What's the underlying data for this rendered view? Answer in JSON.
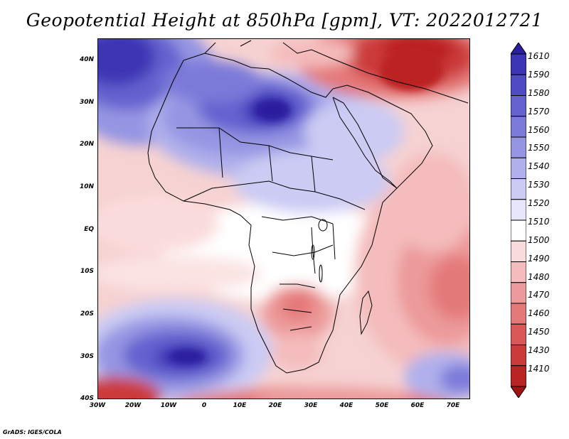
{
  "title": "Geopotential Height at 850hPa [gpm], VT: 2022012721",
  "credit": "GrADS: IGES/COLA",
  "map": {
    "projection": "latlon",
    "lon_range": [
      -30,
      75
    ],
    "lat_range": [
      -40,
      45
    ],
    "lat_labels": [
      "40N",
      "30N",
      "20N",
      "10N",
      "EQ",
      "10S",
      "20S",
      "30S",
      "40S"
    ],
    "lon_labels": [
      "30W",
      "20W",
      "10W",
      "0",
      "10E",
      "20E",
      "30E",
      "40E",
      "50E",
      "60E",
      "70E"
    ]
  },
  "colorbar": {
    "levels": [
      "1610",
      "1590",
      "1580",
      "1570",
      "1560",
      "1550",
      "1540",
      "1530",
      "1520",
      "1510",
      "1500",
      "1490",
      "1480",
      "1470",
      "1460",
      "1450",
      "1430",
      "1410"
    ],
    "colors": [
      "#2a1f9e",
      "#3c36b4",
      "#4f4bc4",
      "#6462cf",
      "#7b7ad9",
      "#9595e3",
      "#b0b0ec",
      "#cbcbf4",
      "#e6e6fa",
      "#ffffff",
      "#fbdcdc",
      "#f4bcbc",
      "#ec9a9a",
      "#e47979",
      "#d95858",
      "#cc3b3b",
      "#bb2424",
      "#9e1414"
    ]
  }
}
